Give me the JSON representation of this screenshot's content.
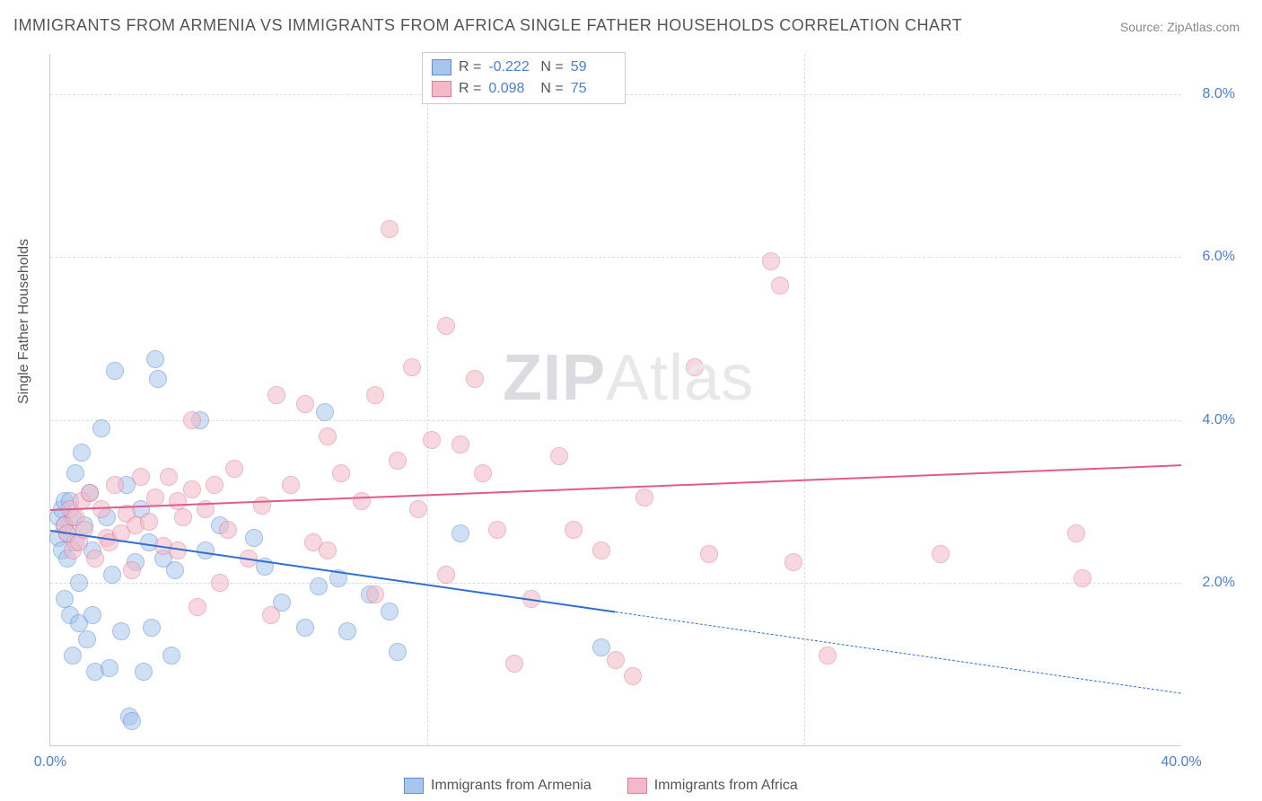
{
  "title": "IMMIGRANTS FROM ARMENIA VS IMMIGRANTS FROM AFRICA SINGLE FATHER HOUSEHOLDS CORRELATION CHART",
  "source": "Source: ZipAtlas.com",
  "ylabel": "Single Father Households",
  "watermark_bold": "ZIP",
  "watermark_light": "Atlas",
  "chart": {
    "type": "scatter",
    "xlim": [
      0,
      40
    ],
    "ylim": [
      0,
      8.5
    ],
    "xticks": [
      0.0,
      40.0
    ],
    "yticks": [
      2.0,
      4.0,
      6.0,
      8.0
    ],
    "grid_color": "#dddddd",
    "axis_color": "#cccccc",
    "background_color": "#ffffff",
    "tick_label_color": "#4a7fd8",
    "tick_fontsize": 16,
    "marker_radius": 9,
    "marker_opacity": 0.55,
    "series": [
      {
        "name": "Immigrants from Armenia",
        "color_fill": "#a8c5ec",
        "color_stroke": "#5a8fd6",
        "R": "-0.222",
        "N": "59",
        "trend": {
          "x1": 0,
          "y1": 2.65,
          "x2_solid": 20,
          "y2_solid": 1.65,
          "x2_dash": 40,
          "y2_dash": 0.65,
          "color": "#2e6fd0",
          "width": 2
        },
        "points": [
          [
            0.3,
            2.8
          ],
          [
            0.3,
            2.55
          ],
          [
            0.4,
            2.9
          ],
          [
            0.4,
            2.4
          ],
          [
            0.5,
            2.7
          ],
          [
            0.5,
            3.0
          ],
          [
            0.5,
            1.8
          ],
          [
            0.6,
            2.6
          ],
          [
            0.6,
            2.3
          ],
          [
            0.7,
            3.0
          ],
          [
            0.7,
            1.6
          ],
          [
            0.8,
            2.8
          ],
          [
            0.8,
            1.1
          ],
          [
            0.9,
            3.35
          ],
          [
            0.9,
            2.5
          ],
          [
            1.0,
            2.0
          ],
          [
            1.0,
            1.5
          ],
          [
            1.1,
            3.6
          ],
          [
            1.2,
            2.7
          ],
          [
            1.3,
            1.3
          ],
          [
            1.4,
            3.1
          ],
          [
            1.5,
            2.4
          ],
          [
            1.5,
            1.6
          ],
          [
            1.6,
            0.9
          ],
          [
            1.8,
            3.9
          ],
          [
            2.0,
            2.8
          ],
          [
            2.1,
            0.95
          ],
          [
            2.2,
            2.1
          ],
          [
            2.3,
            4.6
          ],
          [
            2.5,
            1.4
          ],
          [
            2.7,
            3.2
          ],
          [
            2.8,
            0.35
          ],
          [
            2.9,
            0.3
          ],
          [
            3.0,
            2.25
          ],
          [
            3.2,
            2.9
          ],
          [
            3.3,
            0.9
          ],
          [
            3.5,
            2.5
          ],
          [
            3.6,
            1.45
          ],
          [
            3.7,
            4.75
          ],
          [
            3.8,
            4.5
          ],
          [
            4.0,
            2.3
          ],
          [
            4.3,
            1.1
          ],
          [
            4.4,
            2.15
          ],
          [
            5.3,
            4.0
          ],
          [
            5.5,
            2.4
          ],
          [
            6.0,
            2.7
          ],
          [
            7.2,
            2.55
          ],
          [
            7.6,
            2.2
          ],
          [
            8.2,
            1.75
          ],
          [
            9.0,
            1.45
          ],
          [
            9.5,
            1.95
          ],
          [
            9.7,
            4.1
          ],
          [
            10.2,
            2.05
          ],
          [
            10.5,
            1.4
          ],
          [
            11.3,
            1.85
          ],
          [
            12.0,
            1.65
          ],
          [
            12.3,
            1.15
          ],
          [
            14.5,
            2.6
          ],
          [
            19.5,
            1.2
          ]
        ]
      },
      {
        "name": "Immigrants from Africa",
        "color_fill": "#f4b9c7",
        "color_stroke": "#e77a9a",
        "R": "0.098",
        "N": "75",
        "trend": {
          "x1": 0,
          "y1": 2.9,
          "x2_solid": 40,
          "y2_solid": 3.45,
          "color": "#e35a86",
          "width": 2
        },
        "points": [
          [
            0.5,
            2.7
          ],
          [
            0.6,
            2.6
          ],
          [
            0.7,
            2.9
          ],
          [
            0.8,
            2.4
          ],
          [
            0.9,
            2.8
          ],
          [
            1.0,
            2.5
          ],
          [
            1.1,
            3.0
          ],
          [
            1.2,
            2.65
          ],
          [
            1.4,
            3.1
          ],
          [
            1.6,
            2.3
          ],
          [
            1.8,
            2.9
          ],
          [
            2.0,
            2.55
          ],
          [
            2.1,
            2.5
          ],
          [
            2.3,
            3.2
          ],
          [
            2.5,
            2.6
          ],
          [
            2.7,
            2.85
          ],
          [
            2.9,
            2.15
          ],
          [
            3.0,
            2.7
          ],
          [
            3.2,
            3.3
          ],
          [
            3.5,
            2.75
          ],
          [
            3.7,
            3.05
          ],
          [
            4.0,
            2.45
          ],
          [
            4.2,
            3.3
          ],
          [
            4.5,
            3.0
          ],
          [
            4.5,
            2.4
          ],
          [
            4.7,
            2.8
          ],
          [
            5.0,
            4.0
          ],
          [
            5.0,
            3.15
          ],
          [
            5.2,
            1.7
          ],
          [
            5.5,
            2.9
          ],
          [
            5.8,
            3.2
          ],
          [
            6.0,
            2.0
          ],
          [
            6.3,
            2.65
          ],
          [
            6.5,
            3.4
          ],
          [
            7.0,
            2.3
          ],
          [
            7.5,
            2.95
          ],
          [
            7.8,
            1.6
          ],
          [
            8.0,
            4.3
          ],
          [
            8.5,
            3.2
          ],
          [
            9.0,
            4.2
          ],
          [
            9.3,
            2.5
          ],
          [
            9.8,
            3.8
          ],
          [
            9.8,
            2.4
          ],
          [
            10.3,
            3.35
          ],
          [
            11.0,
            3.0
          ],
          [
            11.5,
            1.85
          ],
          [
            11.5,
            4.3
          ],
          [
            12.0,
            6.35
          ],
          [
            12.3,
            3.5
          ],
          [
            12.8,
            4.65
          ],
          [
            13.0,
            2.9
          ],
          [
            13.5,
            3.75
          ],
          [
            14.0,
            5.15
          ],
          [
            14.0,
            2.1
          ],
          [
            14.5,
            3.7
          ],
          [
            15.0,
            4.5
          ],
          [
            15.3,
            3.35
          ],
          [
            15.8,
            2.65
          ],
          [
            16.4,
            1.0
          ],
          [
            17.0,
            1.8
          ],
          [
            18.0,
            3.55
          ],
          [
            18.5,
            2.65
          ],
          [
            19.5,
            2.4
          ],
          [
            20.0,
            1.05
          ],
          [
            20.6,
            0.85
          ],
          [
            21.0,
            3.05
          ],
          [
            22.8,
            4.65
          ],
          [
            23.3,
            2.35
          ],
          [
            25.5,
            5.95
          ],
          [
            25.8,
            5.65
          ],
          [
            26.3,
            2.25
          ],
          [
            27.5,
            1.1
          ],
          [
            31.5,
            2.35
          ],
          [
            36.3,
            2.6
          ],
          [
            36.5,
            2.05
          ]
        ]
      }
    ]
  },
  "legend_top_labels": {
    "R": "R =",
    "N": "N ="
  },
  "xtick_fmt_suffix": "%",
  "ytick_fmt_suffix": "%"
}
